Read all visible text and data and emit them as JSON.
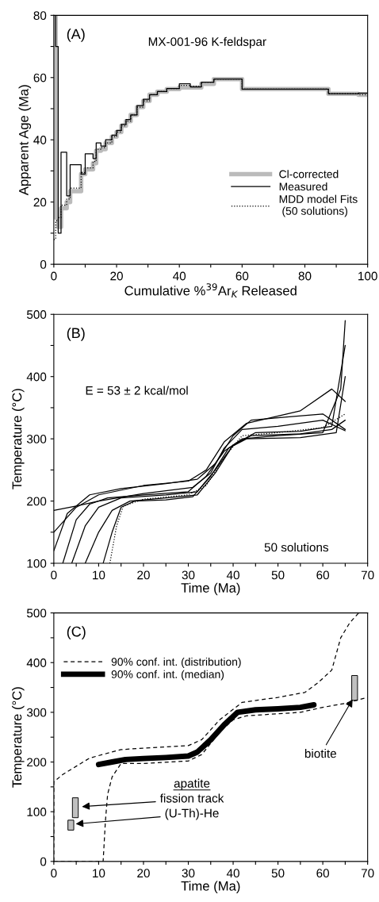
{
  "chart_data": [
    {
      "type": "step",
      "xlabel": "Cumulative %$^{39}$Ar$_{K}$ Released",
      "ylabel": "Apparent Age (Ma)",
      "xlim": [
        0,
        100
      ],
      "xticks": [
        0,
        {
          "value": 10,
          "label": null
        },
        20,
        {
          "value": 30,
          "label": null
        },
        40,
        {
          "value": 50,
          "label": null
        },
        60,
        {
          "value": 70,
          "label": null
        },
        80,
        {
          "value": 90,
          "label": null
        },
        100
      ],
      "ylim": [
        0,
        80
      ],
      "yticks": [
        0,
        {
          "value": 10,
          "label": null
        },
        20,
        {
          "value": 30,
          "label": null
        },
        40,
        {
          "value": 50,
          "label": null
        },
        60,
        {
          "value": 70,
          "label": null
        },
        80
      ],
      "annotations": [
        "(A)",
        "MX-001-96 K-feldspar"
      ],
      "legend": "bottom right",
      "grid": false,
      "series": [
        {
          "name": "Cl-corrected",
          "color": "#bbbbbb",
          "line_style": "solid",
          "x": [
            0,
            0.6,
            1.4,
            2.3,
            4.1,
            5.2,
            8.7,
            10,
            12.5,
            13.5,
            15,
            16.5,
            18.5,
            20,
            21.5,
            23,
            24.5,
            26.5,
            28.5,
            30.5,
            33,
            36,
            40,
            43.5,
            47,
            51,
            60,
            87.5,
            97,
            100
          ],
          "values": [
            80,
            15,
            12,
            18,
            20,
            23.5,
            29,
            30.5,
            32.5,
            36.5,
            37,
            39,
            41,
            42.5,
            44.5,
            46,
            48,
            50.5,
            52.5,
            54.5,
            55.5,
            56.3,
            56.8,
            56.8,
            58,
            59.5,
            56.3,
            54.8,
            54.5,
            54.5
          ]
        },
        {
          "name": "Measured",
          "color": "#000000",
          "line_style": "solid",
          "x": [
            0,
            0.6,
            1.4,
            2.3,
            4.1,
            5.2,
            8.7,
            10,
            12.5,
            13.5,
            15,
            16.5,
            18.5,
            20,
            21.5,
            23,
            24.5,
            26.5,
            28.5,
            30.5,
            33,
            36,
            40,
            43.5,
            47,
            51,
            60,
            87.5,
            97,
            100
          ],
          "values": [
            80,
            70,
            10,
            36,
            22,
            32,
            29,
            35.5,
            34,
            39,
            38,
            40,
            41.5,
            43,
            45,
            46.5,
            48,
            51,
            53,
            54.5,
            55.5,
            56.5,
            58,
            57,
            58.5,
            59.5,
            56.3,
            54.8,
            55,
            55
          ]
        },
        {
          "name": "MDD model Fits\n (50 solutions)",
          "color": "#000000",
          "line_style": "dotted",
          "x": [
            0,
            0.6,
            1.4,
            2.3,
            4.1,
            5.2,
            8.7,
            10,
            12.5,
            13.5,
            15,
            16.5,
            18.5,
            20,
            21.5,
            23,
            24.5,
            26.5,
            28.5,
            30.5,
            33,
            36,
            40,
            43.5,
            47,
            51,
            60,
            87.5,
            97,
            100
          ],
          "values": [
            8,
            14,
            15,
            19,
            21,
            24.5,
            29.5,
            31,
            33,
            37,
            37.5,
            39,
            41,
            42.5,
            44.5,
            46,
            48,
            50.5,
            52.5,
            54.5,
            55.5,
            56.5,
            57.5,
            57.2,
            58.5,
            59.5,
            56.3,
            54.8,
            54.5,
            54.5
          ]
        }
      ]
    },
    {
      "type": "line",
      "xlabel": "Time (Ma)",
      "ylabel": "Temperature (°C)",
      "xlim": [
        0,
        70
      ],
      "xticks": [
        0,
        {
          "value": 5,
          "label": null
        },
        10,
        {
          "value": 15,
          "label": null
        },
        20,
        {
          "value": 25,
          "label": null
        },
        30,
        {
          "value": 35,
          "label": null
        },
        40,
        {
          "value": 45,
          "label": null
        },
        50,
        {
          "value": 55,
          "label": null
        },
        60,
        {
          "value": 65,
          "label": null
        },
        70
      ],
      "ylim": [
        100,
        500
      ],
      "yticks": [
        100,
        {
          "value": 150,
          "label": null
        },
        200,
        {
          "value": 250,
          "label": null
        },
        300,
        {
          "value": 350,
          "label": null
        },
        400,
        {
          "value": 450,
          "label": null
        },
        500
      ],
      "annotations": [
        "(B)",
        "E = 53 ± 2 kcal/mol",
        "50 solutions"
      ],
      "grid": false,
      "series": [
        {
          "color": "#000000",
          "line_style": "solid",
          "x": [
            0,
            5,
            10,
            20,
            31,
            35,
            38,
            42,
            50,
            60,
            65
          ],
          "values": [
            185,
            192,
            200,
            212,
            222,
            245,
            285,
            315,
            320,
            330,
            313
          ]
        },
        {
          "color": "#000000",
          "line_style": "solid",
          "x": [
            0,
            5,
            10,
            20,
            30,
            34,
            38,
            43,
            55,
            62,
            65
          ],
          "values": [
            150,
            190,
            210,
            225,
            232,
            250,
            295,
            325,
            345,
            380,
            360
          ]
        },
        {
          "color": "#000000",
          "line_style": "solid",
          "x": [
            2,
            5,
            8,
            12,
            20,
            30,
            34,
            38,
            42,
            50,
            60,
            64,
            65
          ],
          "values": [
            100,
            170,
            195,
            205,
            210,
            215,
            240,
            280,
            300,
            305,
            310,
            380,
            490
          ]
        },
        {
          "color": "#000000",
          "line_style": "solid",
          "x": [
            4,
            7,
            10,
            15,
            25,
            32,
            36,
            40,
            45,
            55,
            62,
            65
          ],
          "values": [
            100,
            160,
            190,
            205,
            210,
            215,
            250,
            290,
            310,
            312,
            320,
            450
          ]
        },
        {
          "color": "#000000",
          "line_style": "solid",
          "x": [
            7,
            10,
            13,
            17,
            25,
            32,
            36,
            40,
            44,
            55,
            62,
            65
          ],
          "values": [
            100,
            150,
            185,
            200,
            205,
            210,
            245,
            290,
            305,
            308,
            315,
            330
          ]
        },
        {
          "color": "#000000",
          "line_style": "solid",
          "x": [
            11,
            13,
            15,
            18,
            25,
            31,
            35,
            39,
            43,
            55,
            63,
            65
          ],
          "values": [
            100,
            150,
            190,
            200,
            202,
            207,
            240,
            285,
            300,
            302,
            310,
            400
          ]
        },
        {
          "color": "#000000",
          "line_style": "solid",
          "x": [
            0,
            3,
            8,
            15,
            25,
            32,
            36,
            40,
            44,
            52,
            60,
            65
          ],
          "values": [
            120,
            180,
            210,
            220,
            228,
            235,
            260,
            305,
            330,
            335,
            340,
            315
          ]
        },
        {
          "color": "#000000",
          "line_style": "dotted",
          "x": [
            12.5,
            14,
            15.5,
            20,
            30,
            34,
            38,
            42,
            50,
            60,
            65
          ],
          "values": [
            100,
            160,
            192,
            203,
            210,
            225,
            270,
            305,
            310,
            318,
            340
          ]
        }
      ]
    },
    {
      "type": "line",
      "xlabel": "Time (Ma)",
      "ylabel": "Temperature (°C)",
      "xlim": [
        0,
        70
      ],
      "xticks": [
        0,
        {
          "value": 5,
          "label": null
        },
        10,
        {
          "value": 15,
          "label": null
        },
        20,
        {
          "value": 25,
          "label": null
        },
        30,
        {
          "value": 35,
          "label": null
        },
        40,
        {
          "value": 45,
          "label": null
        },
        50,
        {
          "value": 55,
          "label": null
        },
        60,
        {
          "value": 65,
          "label": null
        },
        70
      ],
      "ylim": [
        0,
        500
      ],
      "yticks": [
        0,
        {
          "value": 50,
          "label": null
        },
        100,
        {
          "value": 150,
          "label": null
        },
        200,
        {
          "value": 250,
          "label": null
        },
        300,
        {
          "value": 350,
          "label": null
        },
        400,
        {
          "value": 450,
          "label": null
        },
        500
      ],
      "legend": "top left",
      "grid": false,
      "annotations": [
        "(C)",
        "apatite",
        {
          "text": "fission track",
          "x": 5.8,
          "y": 110
        },
        {
          "text": "(U-Th)-He",
          "x": 4.4,
          "y": 75
        },
        {
          "text": "biotite",
          "x": 66.9,
          "y": 330
        }
      ],
      "series": [
        {
          "name": "90% conf. int. (distribution)",
          "color": "#000000",
          "line_style": "dashed",
          "x": [
            0,
            0,
            2,
            8,
            15,
            20,
            30,
            33,
            37,
            42,
            50,
            56,
            59,
            62,
            64,
            66,
            68
          ],
          "values": [
            0,
            160,
            175,
            208,
            225,
            228,
            233,
            245,
            285,
            320,
            330,
            340,
            360,
            385,
            450,
            480,
            500
          ]
        },
        {
          "color": "#000000",
          "line_style": "dashed",
          "x": [
            0,
            11,
            11.5,
            12,
            13,
            15,
            20,
            30,
            33,
            37,
            40,
            43,
            55,
            60,
            65,
            70
          ],
          "values": [
            0,
            0,
            80,
            135,
            170,
            197,
            197,
            202,
            215,
            260,
            285,
            293,
            300,
            310,
            318,
            330
          ]
        },
        {
          "name": "90% conf. int. (median)",
          "color": "#000000",
          "line_style": "solid",
          "x": [
            10,
            13,
            16,
            20,
            25,
            30,
            32,
            35,
            38,
            41,
            45,
            50,
            55,
            58
          ],
          "values": [
            195,
            200,
            205,
            207,
            209,
            212,
            220,
            245,
            275,
            300,
            305,
            307,
            310,
            315
          ]
        },
        {
          "type": "bar",
          "color": "#c0c0c0",
          "x": [
            3.8,
            4.8,
            67.1
          ],
          "base": [
            63,
            88,
            324
          ],
          "values": [
            20,
            40,
            50
          ]
        }
      ]
    }
  ]
}
